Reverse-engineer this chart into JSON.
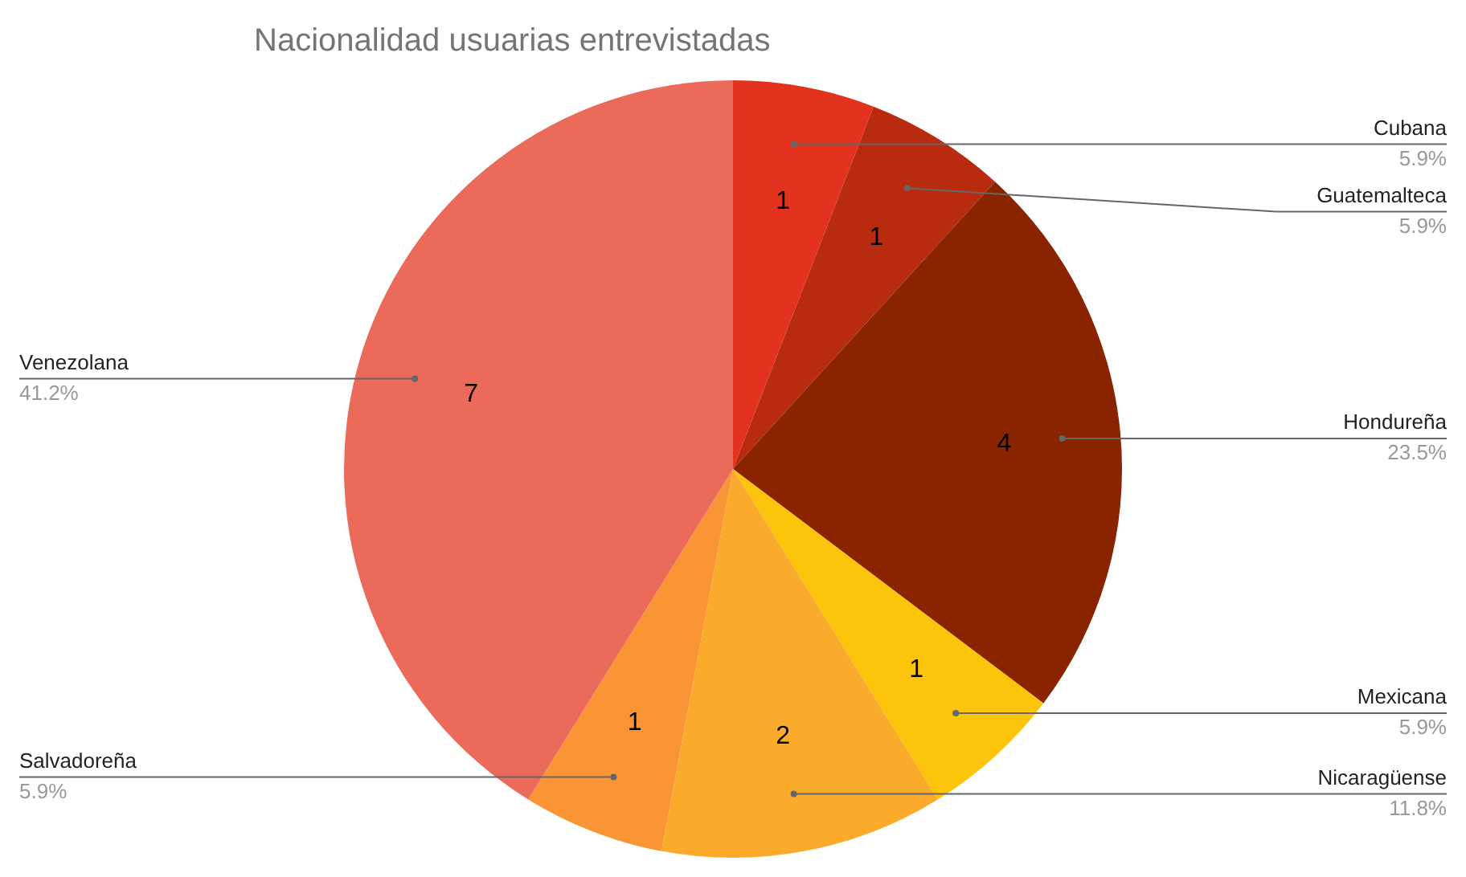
{
  "chart_data": {
    "type": "pie",
    "title": "Nacionalidad usuarias entrevistadas",
    "categories": [
      "Cubana",
      "Guatemalteca",
      "Hondureña",
      "Mexicana",
      "Nicaragüense",
      "Salvadoreña",
      "Venezolana"
    ],
    "values": [
      1,
      1,
      4,
      1,
      2,
      1,
      7
    ],
    "colors": [
      "#e3321e",
      "#b82b0e",
      "#8a2400",
      "#fcc40a",
      "#fbab2c",
      "#f99535",
      "#ec6a5a"
    ],
    "data_labels": true,
    "legend": false,
    "annotations": [
      "5.9%",
      "5.9%",
      "23.5%",
      "5.9%",
      "11.8%",
      "5.9%",
      "41.2%"
    ]
  }
}
